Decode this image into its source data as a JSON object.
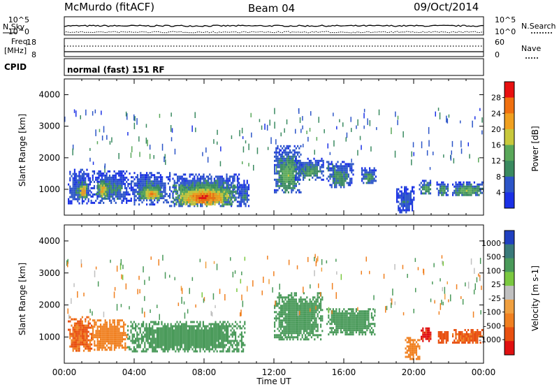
{
  "header": {
    "station": "McMurdo (fitACF)",
    "beam": "Beam 04",
    "date": "09/Oct/2014"
  },
  "noise_panel": {
    "left_label": "N.Sky",
    "right_label": "N.Search",
    "left_ticks": [
      "10^5",
      "10^0"
    ],
    "right_ticks": [
      "10^5",
      "10^0"
    ]
  },
  "freq_panel": {
    "left_label_1": "Freq.",
    "left_label_2": "[MHz]",
    "left_ticks": [
      "18",
      "8"
    ],
    "right_label": "Nave",
    "right_ticks": [
      "60",
      "0"
    ]
  },
  "cpid": {
    "label": "CPID",
    "value": "normal (fast) 151 RF"
  },
  "colors": {
    "power": [
      "#1a30e6",
      "#2c55c8",
      "#3a8a60",
      "#5aa85a",
      "#c8c83c",
      "#f0a020",
      "#f07010",
      "#e81010"
    ],
    "velocity": [
      "#2040c0",
      "#3a7a7a",
      "#4a9a5a",
      "#7ac840",
      "#c0c0c0",
      "#f0a040",
      "#f08020",
      "#e85010",
      "#e01010"
    ]
  },
  "chart_data": [
    {
      "type": "heatmap",
      "title": "Power",
      "ylabel": "Slant Range [km]",
      "xlabel": "",
      "colorbar_label": "Power [dB]",
      "colorbar_ticks": [
        "28",
        "24",
        "20",
        "16",
        "12",
        "8",
        "4"
      ],
      "ylim": [
        180,
        4500
      ],
      "yticks": [
        "4000",
        "3000",
        "2000",
        "1000"
      ],
      "xlim": [
        0,
        24
      ],
      "blobs": [
        {
          "t0": 0.2,
          "t1": 1.5,
          "r0": 550,
          "r1": 1650,
          "level": 8
        },
        {
          "t0": 0.8,
          "t1": 1.3,
          "r0": 750,
          "r1": 1250,
          "level": 26
        },
        {
          "t0": 1.5,
          "t1": 3.8,
          "r0": 600,
          "r1": 1600,
          "level": 9
        },
        {
          "t0": 1.8,
          "t1": 2.5,
          "r0": 750,
          "r1": 1350,
          "level": 22
        },
        {
          "t0": 3.8,
          "t1": 6.0,
          "r0": 550,
          "r1": 1550,
          "level": 10
        },
        {
          "t0": 4.3,
          "t1": 5.6,
          "r0": 700,
          "r1": 1150,
          "level": 24
        },
        {
          "t0": 6.0,
          "t1": 10.0,
          "r0": 450,
          "r1": 1500,
          "level": 13
        },
        {
          "t0": 6.2,
          "t1": 9.8,
          "r0": 500,
          "r1": 1150,
          "level": 28
        },
        {
          "t0": 9.9,
          "t1": 10.6,
          "r0": 500,
          "r1": 1300,
          "level": 8
        },
        {
          "t0": 12.0,
          "t1": 13.5,
          "r0": 900,
          "r1": 2400,
          "level": 14
        },
        {
          "t0": 13.2,
          "t1": 14.8,
          "r0": 1300,
          "r1": 2000,
          "level": 12
        },
        {
          "t0": 15.0,
          "t1": 16.5,
          "r0": 1100,
          "r1": 1900,
          "level": 11
        },
        {
          "t0": 17.0,
          "t1": 17.8,
          "r0": 1200,
          "r1": 1700,
          "level": 12
        },
        {
          "t0": 19.0,
          "t1": 20.0,
          "r0": 300,
          "r1": 1100,
          "level": 7
        },
        {
          "t0": 20.3,
          "t1": 21.0,
          "r0": 900,
          "r1": 1300,
          "level": 13
        },
        {
          "t0": 21.3,
          "t1": 22.0,
          "r0": 850,
          "r1": 1250,
          "level": 12
        },
        {
          "t0": 22.2,
          "t1": 24.0,
          "r0": 800,
          "r1": 1250,
          "level": 14
        }
      ]
    },
    {
      "type": "heatmap",
      "title": "Velocity",
      "ylabel": "Slant Range [km]",
      "xlabel": "Time UT",
      "colorbar_label": "Velocity [m s-1]",
      "colorbar_ticks": [
        "1000",
        "500",
        "100",
        "25",
        "-25",
        "-100",
        "-500",
        "-1000"
      ],
      "ylim": [
        180,
        4500
      ],
      "yticks": [
        "4000",
        "3000",
        "2000",
        "1000"
      ],
      "xticks": [
        "00:00",
        "04:00",
        "08:00",
        "12:00",
        "16:00",
        "20:00",
        "00:00"
      ],
      "xlim": [
        0,
        24
      ],
      "blobs": [
        {
          "t0": 0.2,
          "t1": 1.6,
          "r0": 550,
          "r1": 1650,
          "level": -300
        },
        {
          "t0": 1.6,
          "t1": 3.6,
          "r0": 600,
          "r1": 1550,
          "level": -200
        },
        {
          "t0": 3.6,
          "t1": 10.3,
          "r0": 550,
          "r1": 1500,
          "level": 200
        },
        {
          "t0": 12.0,
          "t1": 14.8,
          "r0": 900,
          "r1": 2400,
          "level": 200
        },
        {
          "t0": 15.0,
          "t1": 17.8,
          "r0": 1100,
          "r1": 1900,
          "level": 150
        },
        {
          "t0": 19.5,
          "t1": 20.3,
          "r0": 300,
          "r1": 1000,
          "level": -200
        },
        {
          "t0": 20.4,
          "t1": 21.0,
          "r0": 900,
          "r1": 1300,
          "level": -1000
        },
        {
          "t0": 21.3,
          "t1": 22.0,
          "r0": 850,
          "r1": 1250,
          "level": -500
        },
        {
          "t0": 22.2,
          "t1": 24.0,
          "r0": 800,
          "r1": 1250,
          "level": -400
        }
      ]
    }
  ]
}
